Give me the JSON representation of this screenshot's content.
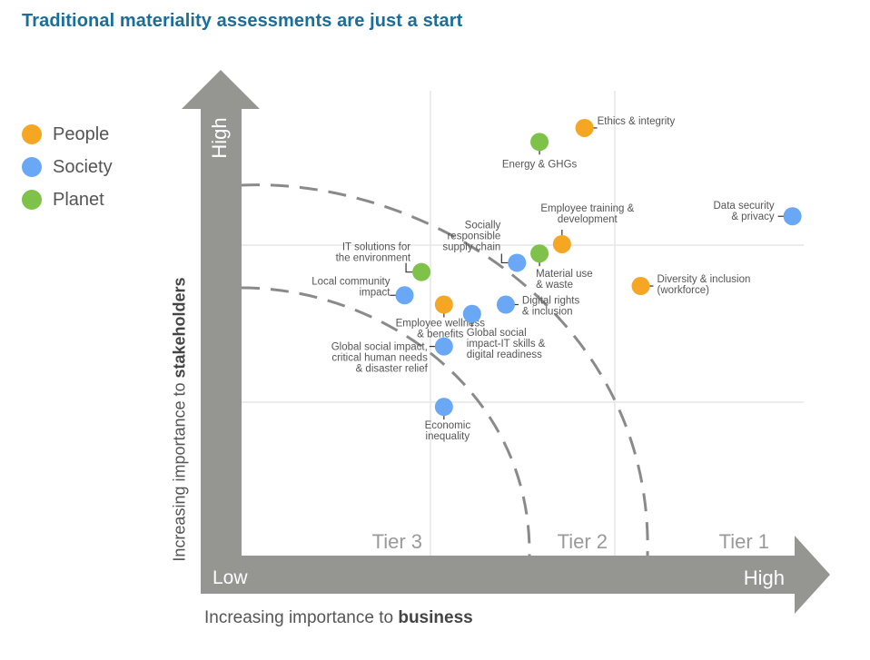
{
  "title": "Traditional materiality assessments are just a start",
  "legend": [
    {
      "label": "People",
      "color": "#f5a623"
    },
    {
      "label": "Society",
      "color": "#6aa8f5"
    },
    {
      "label": "Planet",
      "color": "#7fc24a"
    }
  ],
  "chart_data": {
    "type": "scatter",
    "title": "Traditional materiality assessments are just a start",
    "xlabel": "Increasing importance to business",
    "xlabel_plain": "Increasing importance to ",
    "xlabel_bold": "business",
    "ylabel": "Increasing importance to stakeholders",
    "ylabel_plain": "Increasing importance to ",
    "ylabel_bold": "stakeholders",
    "x_axis": {
      "low_label": "Low",
      "high_label": "High"
    },
    "y_axis": {
      "high_label": "High"
    },
    "xlim": [
      0,
      100
    ],
    "ylim": [
      0,
      100
    ],
    "grid": true,
    "tiers": [
      "Tier 3",
      "Tier 2",
      "Tier 1"
    ],
    "legend_position": "left",
    "categories": {
      "People": "#f5a623",
      "Society": "#6aa8f5",
      "Planet": "#7fc24a"
    },
    "points": [
      {
        "label": "Ethics & integrity",
        "category": "People",
        "x": 61,
        "y": 92
      },
      {
        "label": "Energy & GHGs",
        "category": "Planet",
        "x": 53,
        "y": 89
      },
      {
        "label": "Data security & privacy",
        "category": "Society",
        "x": 98,
        "y": 73
      },
      {
        "label": "Employee training & development",
        "category": "People",
        "x": 57,
        "y": 67
      },
      {
        "label": "Socially responsible supply chain",
        "category": "Society",
        "x": 49,
        "y": 63
      },
      {
        "label": "Material use & waste",
        "category": "Planet",
        "x": 53,
        "y": 65
      },
      {
        "label": "Diversity & inclusion (workforce)",
        "category": "People",
        "x": 71,
        "y": 58
      },
      {
        "label": "IT solutions for the environment",
        "category": "Planet",
        "x": 32,
        "y": 61
      },
      {
        "label": "Local community impact",
        "category": "Society",
        "x": 29,
        "y": 56
      },
      {
        "label": "Employee wellness & benefits",
        "category": "People",
        "x": 36,
        "y": 54
      },
      {
        "label": "Digital rights & inclusion",
        "category": "Society",
        "x": 47,
        "y": 54
      },
      {
        "label": "Global social impact-IT skills & digital readiness",
        "category": "Society",
        "x": 41,
        "y": 52
      },
      {
        "label": "Global social impact, critical human needs & disaster relief",
        "category": "Society",
        "x": 36,
        "y": 45
      },
      {
        "label": "Economic inequality",
        "category": "Society",
        "x": 36,
        "y": 32
      }
    ]
  }
}
